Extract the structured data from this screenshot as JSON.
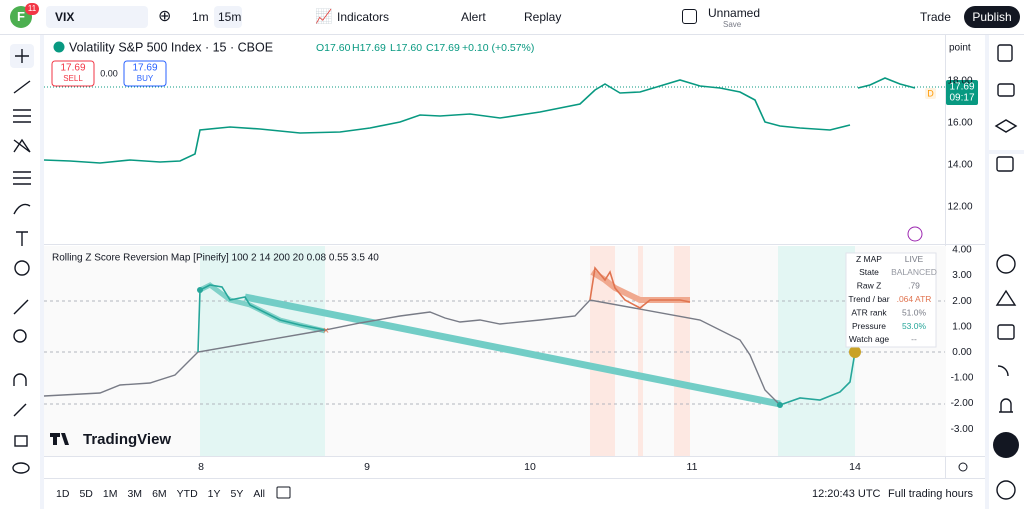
{
  "top_bar": {
    "avatar": "F",
    "badge": "11",
    "symbol": "VIX",
    "intervals": [
      "1m",
      "15m"
    ],
    "indicators": "Indicators",
    "alert": "Alert",
    "replay": "Replay",
    "layout_name": "Unnamed",
    "layout_status": "Save",
    "trade": "Trade",
    "publish": "Publish"
  },
  "legend": {
    "title": "Volatility S&P 500 Index · 15 · CBOE",
    "open": "O17.60",
    "high": "H17.69",
    "low": "L17.60",
    "close": "C17.69",
    "change": "+0.10 (+0.57%)"
  },
  "order_panel": {
    "sell_price": "17.69",
    "sell": "SELL",
    "spread": "0.00",
    "buy_price": "17.69",
    "buy": "BUY"
  },
  "price_axis": {
    "unit": "point",
    "labels": [
      "18.00",
      "16.00",
      "14.00",
      "12.00"
    ],
    "last_price": "17.69",
    "countdown": "09:17",
    "marker": "D"
  },
  "indicator": {
    "title": "Rolling Z Score Reversion Map [Pineify] 100 2 14 200 20 0.08 0.55 3.5 40",
    "axis_labels": [
      "4.00",
      "3.00",
      "2.00",
      "1.00",
      "0.00",
      "-1.00",
      "-2.00",
      "-3.00"
    ],
    "table": {
      "rows": [
        [
          "Z MAP",
          "LIVE"
        ],
        [
          "State",
          "BALANCED"
        ],
        [
          "Raw Z",
          ".79"
        ],
        [
          "Trend / bar",
          ".064 ATR"
        ],
        [
          "ATR rank",
          "51.0%"
        ],
        [
          "Pressure",
          "53.0%"
        ],
        [
          "Watch age",
          "--"
        ]
      ]
    }
  },
  "time_axis": {
    "labels": [
      "8",
      "9",
      "10",
      "11",
      "14"
    ]
  },
  "logo": "TradingView",
  "bottom_bar": {
    "ranges": [
      "1D",
      "5D",
      "1M",
      "3M",
      "6M",
      "YTD",
      "1Y",
      "5Y",
      "All"
    ],
    "clock": "12:20:43 UTC",
    "session": "Full trading hours"
  }
}
